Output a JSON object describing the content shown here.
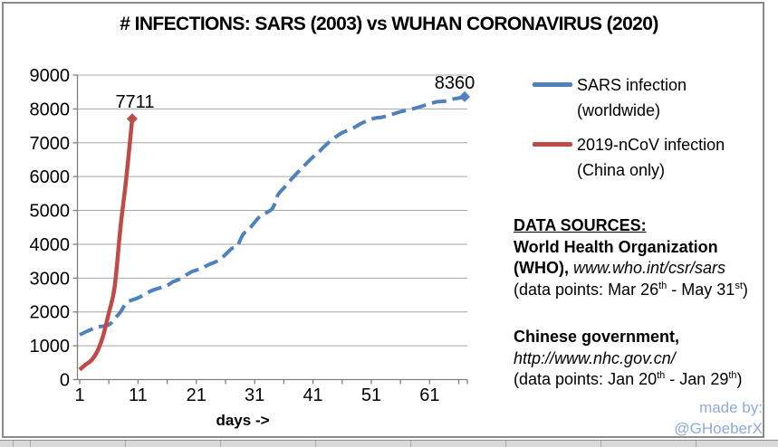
{
  "title": "# INFECTIONS: SARS (2003) vs WUHAN CORONAVIRUS (2020)",
  "chart_data": {
    "type": "line",
    "title": "# INFECTIONS: SARS (2003) vs WUHAN CORONAVIRUS (2020)",
    "xlabel": "days ->",
    "ylabel": "",
    "xlim": [
      1,
      67
    ],
    "ylim": [
      0,
      9000
    ],
    "x_ticks": [
      1,
      11,
      21,
      31,
      41,
      51,
      61
    ],
    "y_ticks": [
      0,
      1000,
      2000,
      3000,
      4000,
      5000,
      6000,
      7000,
      8000,
      9000
    ],
    "grid": true,
    "legend_position": "right",
    "series": [
      {
        "name": "SARS infection (worldwide)",
        "color": "#4F81BD",
        "line_style": "dashed",
        "end_label": "8360",
        "points": [
          [
            1,
            1323
          ],
          [
            2,
            1408
          ],
          [
            3,
            1485
          ],
          [
            4,
            1550
          ],
          [
            6,
            1622
          ],
          [
            7,
            1804
          ],
          [
            8,
            2000
          ],
          [
            9,
            2270
          ],
          [
            10,
            2353
          ],
          [
            11,
            2416
          ],
          [
            13,
            2601
          ],
          [
            14,
            2671
          ],
          [
            15,
            2722
          ],
          [
            16,
            2781
          ],
          [
            17,
            2890
          ],
          [
            18,
            2960
          ],
          [
            20,
            3169
          ],
          [
            21,
            3235
          ],
          [
            22,
            3293
          ],
          [
            23,
            3389
          ],
          [
            25,
            3547
          ],
          [
            27,
            3861
          ],
          [
            28,
            3947
          ],
          [
            29,
            4288
          ],
          [
            30,
            4439
          ],
          [
            31,
            4649
          ],
          [
            32,
            4836
          ],
          [
            34,
            5050
          ],
          [
            35,
            5462
          ],
          [
            36,
            5663
          ],
          [
            37,
            5865
          ],
          [
            38,
            6054
          ],
          [
            39,
            6234
          ],
          [
            41,
            6583
          ],
          [
            42,
            6727
          ],
          [
            43,
            6903
          ],
          [
            44,
            7053
          ],
          [
            45,
            7183
          ],
          [
            46,
            7296
          ],
          [
            48,
            7447
          ],
          [
            49,
            7548
          ],
          [
            50,
            7628
          ],
          [
            51,
            7699
          ],
          [
            52,
            7739
          ],
          [
            53,
            7761
          ],
          [
            55,
            7864
          ],
          [
            56,
            7919
          ],
          [
            57,
            7956
          ],
          [
            58,
            7999
          ],
          [
            59,
            8046
          ],
          [
            62,
            8202
          ],
          [
            63,
            8221
          ],
          [
            64,
            8240
          ],
          [
            65,
            8295
          ],
          [
            66,
            8320
          ],
          [
            67,
            8360
          ]
        ]
      },
      {
        "name": "2019-nCoV infection (China only)",
        "color": "#BE4B48",
        "line_style": "solid",
        "end_label": "7711",
        "points": [
          [
            1,
            291
          ],
          [
            2,
            440
          ],
          [
            3,
            571
          ],
          [
            4,
            830
          ],
          [
            5,
            1287
          ],
          [
            6,
            1975
          ],
          [
            7,
            2744
          ],
          [
            8,
            4515
          ],
          [
            9,
            5974
          ],
          [
            10,
            7711
          ]
        ]
      }
    ]
  },
  "legend": {
    "items": [
      {
        "line1": "SARS infection",
        "line2": "(worldwide)"
      },
      {
        "line1": "2019-nCoV infection",
        "line2": "(China only)"
      }
    ]
  },
  "sources": {
    "heading": "DATA SOURCES:",
    "who": {
      "name": "World Health Organization",
      "name2": "(WHO),",
      "url": "www.who.int/csr/sars",
      "range": [
        "(data points: Mar 26",
        "th",
        " - May 31",
        "st",
        ")"
      ]
    },
    "cn": {
      "name": "Chinese government,",
      "url": "http://www.nhc.gov.cn/",
      "range": [
        "(data points: Jan 20",
        "th",
        " - Jan 29",
        "th",
        ")"
      ]
    }
  },
  "credit": {
    "label": "made by:",
    "handle": "@GHoeberX",
    "color": "#8FAADC"
  },
  "colors": {
    "grid": "#A6A6A6",
    "axis": "#7F7F7F",
    "frame": "#8A8A8A"
  }
}
